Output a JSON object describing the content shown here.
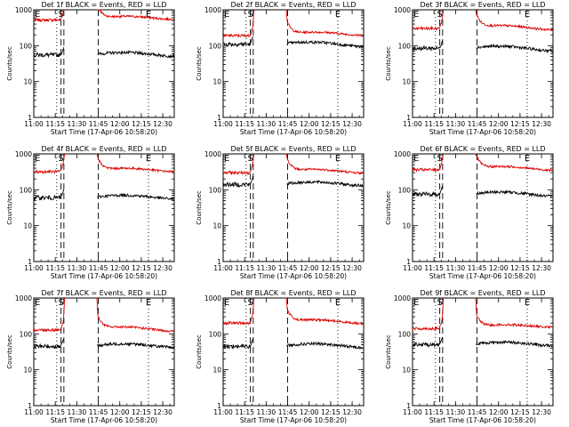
{
  "colors": {
    "events": "#000000",
    "lld": "#dd0000",
    "axis": "#000000",
    "background": "#ffffff"
  },
  "chart_data": {
    "type": "line",
    "yscale": "log",
    "ylim": [
      1,
      1000
    ],
    "xlim": [
      "11:00",
      "12:38"
    ],
    "ylabel": "Counts/sec",
    "xlabel": "Start Time (17-Apr-06 10:58:20)",
    "xticks": [
      "11:00",
      "11:15",
      "11:30",
      "11:45",
      "12:00",
      "12:15",
      "12:30"
    ],
    "yticks": [
      "1",
      "10",
      "100",
      "1000"
    ],
    "markers": [
      {
        "label": "S",
        "time": "11:19",
        "style": "dashed"
      },
      {
        "label": "E",
        "time": "12:20",
        "style": "dotted"
      }
    ],
    "vlines": [
      {
        "time": "11:16",
        "style": "dotted"
      },
      {
        "time": "11:21",
        "style": "dashed"
      },
      {
        "time": "11:45",
        "style": "dashed"
      }
    ],
    "gap": [
      "11:21",
      "11:44"
    ],
    "panels": [
      {
        "title": "Det 1f BLACK = Events, RED = LLD",
        "lld_start": 520,
        "lld_end": 560,
        "ev_start": 55,
        "ev_end": 55
      },
      {
        "title": "Det 2f BLACK = Events, RED = LLD",
        "lld_start": 190,
        "lld_end": 200,
        "ev_start": 110,
        "ev_end": 100
      },
      {
        "title": "Det 3f BLACK = Events, RED = LLD",
        "lld_start": 300,
        "lld_end": 280,
        "ev_start": 85,
        "ev_end": 75
      },
      {
        "title": "Det 4f BLACK = Events, RED = LLD",
        "lld_start": 320,
        "lld_end": 330,
        "ev_start": 60,
        "ev_end": 60
      },
      {
        "title": "Det 5f BLACK = Events, RED = LLD",
        "lld_start": 300,
        "lld_end": 300,
        "ev_start": 140,
        "ev_end": 140
      },
      {
        "title": "Det 6f BLACK = Events, RED = LLD",
        "lld_start": 360,
        "lld_end": 360,
        "ev_start": 75,
        "ev_end": 70
      },
      {
        "title": "Det 7f BLACK = Events, RED = LLD",
        "lld_start": 130,
        "lld_end": 120,
        "ev_start": 45,
        "ev_end": 45
      },
      {
        "title": "Det 8f BLACK = Events, RED = LLD",
        "lld_start": 200,
        "lld_end": 200,
        "ev_start": 45,
        "ev_end": 45
      },
      {
        "title": "Det 9f BLACK = Events, RED = LLD",
        "lld_start": 140,
        "lld_end": 160,
        "ev_start": 50,
        "ev_end": 50
      }
    ]
  }
}
